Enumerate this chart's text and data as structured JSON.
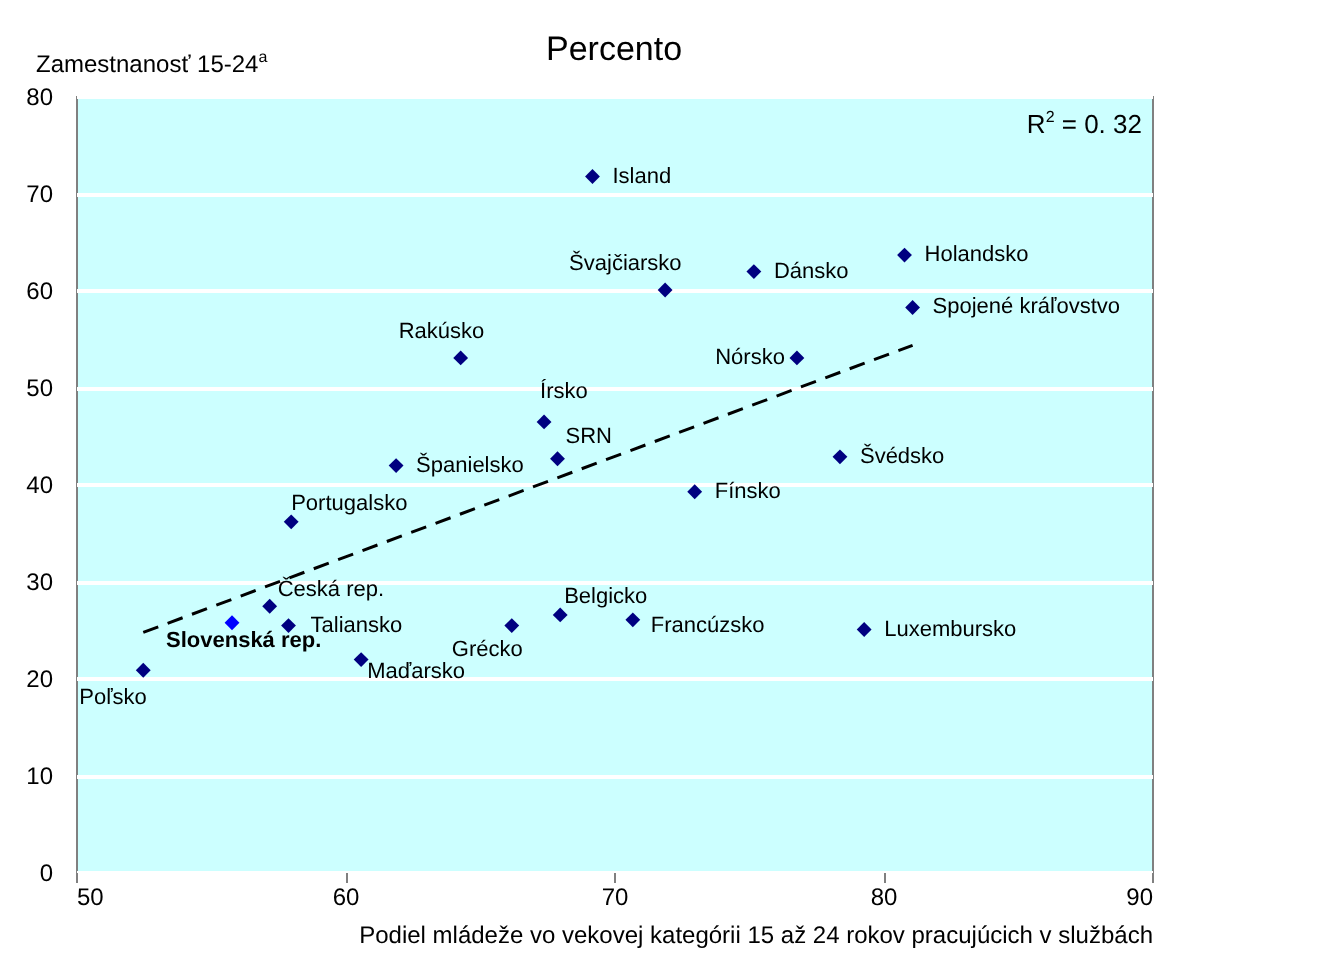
{
  "chart_data": {
    "type": "scatter",
    "title": "Percento",
    "xlabel": "Podiel mládeže vo vekovej kategórii 15 až 24 rokov pracujúcich v službách",
    "ylabel": "Zamestnanosť 15-24$^{a}$",
    "xlim": [
      50,
      90
    ],
    "xticks": [
      50,
      60,
      70,
      80,
      90
    ],
    "ylim": [
      0,
      80
    ],
    "yticks": [
      0,
      10,
      20,
      30,
      40,
      50,
      60,
      70,
      80
    ],
    "grid": "y",
    "series": [
      {
        "marker": "diamond",
        "x": [
          52.5,
          55.8,
          57.2,
          57.9,
          58.0,
          60.6,
          61.9,
          64.3,
          66.2,
          67.4,
          67.9,
          68.0,
          69.2,
          71.9,
          70.7,
          73.0,
          75.2,
          76.8,
          78.4,
          79.3,
          80.8,
          81.1
        ],
        "values": [
          20.8,
          25.7,
          27.4,
          25.4,
          36.1,
          21.9,
          41.9,
          53.0,
          25.4,
          46.4,
          42.6,
          26.5,
          71.7,
          60.0,
          26.0,
          39.2,
          61.9,
          53.0,
          42.8,
          25.0,
          63.6,
          58.2
        ],
        "colors": [
          "#000080",
          "#0000ff",
          "#000080",
          "#000080",
          "#000080",
          "#000080",
          "#000080",
          "#000080",
          "#000080",
          "#000080",
          "#000080",
          "#000080",
          "#000080",
          "#000080",
          "#000080",
          "#000080",
          "#000080",
          "#000080",
          "#000080",
          "#000080",
          "#000080",
          "#000080"
        ]
      },
      {
        "type": "line",
        "x": [
          52.5,
          81.1
        ],
        "values": [
          24.7,
          54.3
        ],
        "color": "#000000",
        "line_style": "dashed"
      }
    ],
    "annotations": [
      {
        "text": "Poľsko",
        "x": 52.5,
        "y": 20.8
      },
      {
        "text": "Slovenská rep.",
        "x": 55.8,
        "y": 25.7
      },
      {
        "text": "Česká rep.",
        "x": 57.2,
        "y": 27.4
      },
      {
        "text": "Taliansko",
        "x": 57.9,
        "y": 25.4
      },
      {
        "text": "Portugalsko",
        "x": 58.0,
        "y": 36.1
      },
      {
        "text": "Maďarsko",
        "x": 60.6,
        "y": 21.9
      },
      {
        "text": "Španielsko",
        "x": 61.9,
        "y": 41.9
      },
      {
        "text": "Rakúsko",
        "x": 64.3,
        "y": 53.0
      },
      {
        "text": "Grécko",
        "x": 66.2,
        "y": 25.4
      },
      {
        "text": "Írsko",
        "x": 67.4,
        "y": 46.4
      },
      {
        "text": "SRN",
        "x": 67.9,
        "y": 42.6
      },
      {
        "text": "Belgicko",
        "x": 68.0,
        "y": 26.5
      },
      {
        "text": "Island",
        "x": 69.2,
        "y": 71.7
      },
      {
        "text": "Švajčiarsko",
        "x": 71.9,
        "y": 60.0
      },
      {
        "text": "Francúzsko",
        "x": 70.7,
        "y": 26.0
      },
      {
        "text": "Fínsko",
        "x": 73.0,
        "y": 39.2
      },
      {
        "text": "Dánsko",
        "x": 75.2,
        "y": 61.9
      },
      {
        "text": "Nórsko",
        "x": 76.8,
        "y": 53.0
      },
      {
        "text": "Švédsko",
        "x": 78.4,
        "y": 42.8
      },
      {
        "text": "Luxembursko",
        "x": 79.3,
        "y": 25.0
      },
      {
        "text": "Holandsko",
        "x": 80.8,
        "y": 63.6
      },
      {
        "text": "Spojené kráľovstvo",
        "x": 81.1,
        "y": 58.2
      },
      "R$^{2}$ = 0. 32"
    ]
  }
}
